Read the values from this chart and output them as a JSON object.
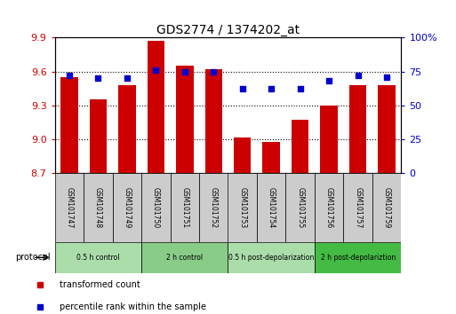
{
  "title": "GDS2774 / 1374202_at",
  "samples": [
    "GSM101747",
    "GSM101748",
    "GSM101749",
    "GSM101750",
    "GSM101751",
    "GSM101752",
    "GSM101753",
    "GSM101754",
    "GSM101755",
    "GSM101756",
    "GSM101757",
    "GSM101759"
  ],
  "bar_values": [
    9.55,
    9.35,
    9.48,
    9.87,
    9.65,
    9.62,
    9.01,
    8.97,
    9.17,
    9.3,
    9.48,
    9.48
  ],
  "dot_values": [
    72,
    70,
    70,
    76,
    75,
    75,
    62,
    62,
    62,
    68,
    72,
    71
  ],
  "ymin": 8.7,
  "ymax": 9.9,
  "yticks": [
    8.7,
    9.0,
    9.3,
    9.6,
    9.9
  ],
  "y2min": 0,
  "y2max": 100,
  "y2ticks": [
    0,
    25,
    50,
    75,
    100
  ],
  "bar_color": "#cc0000",
  "dot_color": "#0000cc",
  "grid_color": "#000000",
  "title_fontsize": 10,
  "groups": [
    {
      "label": "0.5 h control",
      "start": 0,
      "end": 3,
      "color": "#aaddaa"
    },
    {
      "label": "2 h control",
      "start": 3,
      "end": 6,
      "color": "#88cc88"
    },
    {
      "label": "0.5 h post-depolarization",
      "start": 6,
      "end": 9,
      "color": "#aaddaa"
    },
    {
      "label": "2 h post-depolariztion",
      "start": 9,
      "end": 12,
      "color": "#44bb44"
    }
  ],
  "legend_items": [
    {
      "label": "transformed count",
      "color": "#cc0000"
    },
    {
      "label": "percentile rank within the sample",
      "color": "#0000cc"
    }
  ],
  "tick_label_color": "#cc0000",
  "tick_label_color2": "#0000cc",
  "bar_bottom": 8.7,
  "sample_box_color": "#cccccc",
  "protocol_label": "protocol"
}
